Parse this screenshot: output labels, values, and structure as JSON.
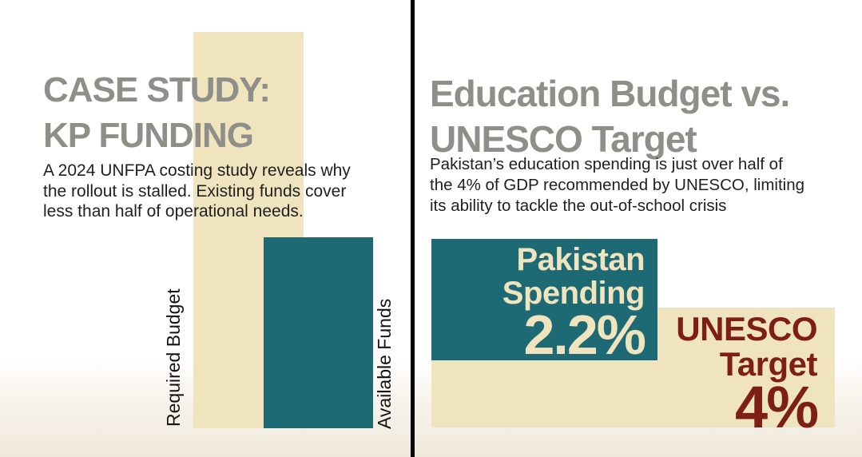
{
  "colors": {
    "teal": "#1e6a74",
    "cream": "#f0e4be",
    "dark_red": "#7e1f17",
    "title_gray": "#8f8f89",
    "body_text": "#1f1f1f",
    "divider": "#000000",
    "background_bottom_tint": "#efe9dc"
  },
  "left_panel": {
    "title_lines": [
      "CASE STUDY:",
      "KP FUNDING"
    ],
    "body_lines": [
      "A 2024 UNFPA costing study reveals why",
      "the rollout is stalled. Existing funds cover",
      "less than half of operational needs."
    ],
    "bars": [
      {
        "label": "Required Budget",
        "color": "#f0e4be"
      },
      {
        "label": "Available Funds",
        "color": "#1e6a74"
      }
    ]
  },
  "right_panel": {
    "title_lines": [
      "Education Budget vs.",
      "UNESCO Target"
    ],
    "body_lines": [
      "Pakistan’s education spending is just over half of",
      "the 4% of GDP recommended by UNESCO, limiting",
      "its ability to tackle the out-of-school crisis"
    ],
    "pakistan_block": {
      "label_line1": "Pakistan",
      "label_line2": "Spending",
      "value": "2.2%",
      "color": "#1e6a74"
    },
    "unesco_block": {
      "label_line1": "UNESCO",
      "label_line2": "Target",
      "value": "4%",
      "color": "#f0e4be"
    }
  },
  "chart_data": [
    {
      "type": "bar",
      "title": "CASE STUDY: KP FUNDING",
      "categories": [
        "Required Budget",
        "Available Funds"
      ],
      "values": [
        100,
        48
      ],
      "value_note": "no numeric labels shown; Available Funds bar is ~48% the height of Required Budget bar (per caption: funds cover less than half of needs)",
      "xlabel": "",
      "ylabel": "",
      "colors": [
        "#f0e4be",
        "#1e6a74"
      ],
      "orientation": "vertical",
      "grid": false,
      "legend": false,
      "axes_labeled": false
    },
    {
      "type": "bar",
      "title": "Education Budget vs. UNESCO Target",
      "categories": [
        "Pakistan Spending",
        "UNESCO Target"
      ],
      "values": [
        2.2,
        4
      ],
      "unit": "% of GDP",
      "data_labels": [
        "2.2%",
        "4%"
      ],
      "colors": [
        "#1e6a74",
        "#f0e4be"
      ],
      "orientation": "horizontal-blocks",
      "grid": false,
      "legend": false,
      "axes_labeled": false
    }
  ]
}
